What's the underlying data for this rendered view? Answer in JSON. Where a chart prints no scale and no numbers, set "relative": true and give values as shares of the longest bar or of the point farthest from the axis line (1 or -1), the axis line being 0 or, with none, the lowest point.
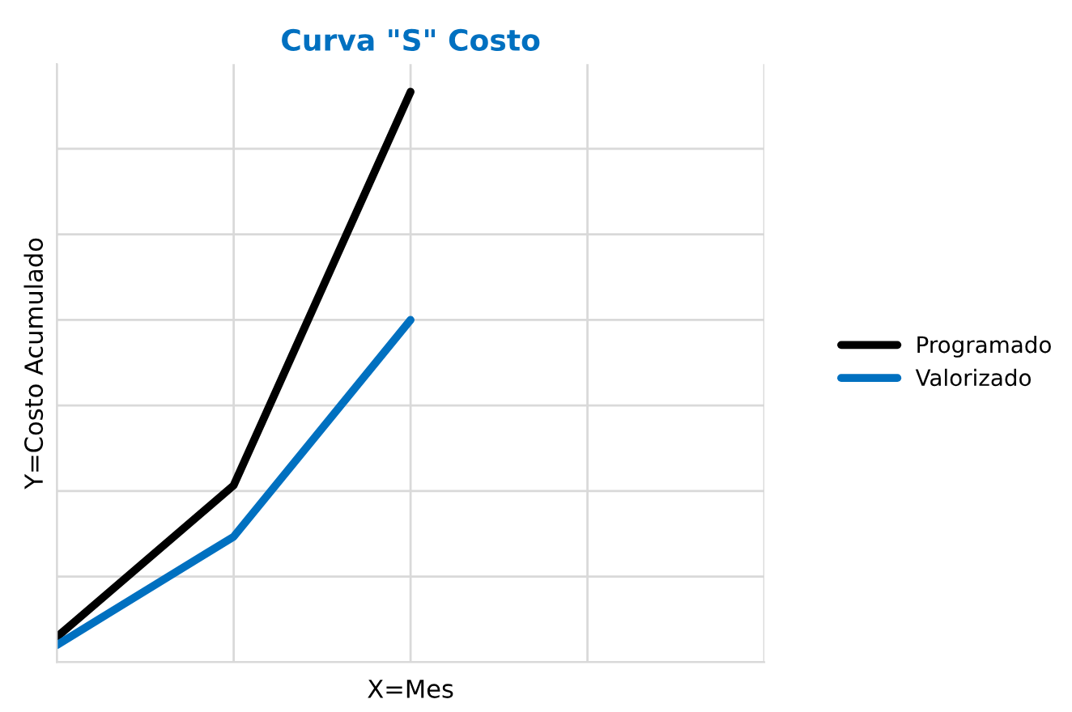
{
  "chart_data": {
    "type": "line",
    "title": "Curva \"S\" Costo",
    "xlabel": "X=Mes",
    "ylabel": "Y=Costo Acumulado",
    "relative": true,
    "categories": [
      null,
      null,
      null,
      null,
      null
    ],
    "series": [
      {
        "name": "Programado",
        "color": "#000000",
        "values": [
          0.044,
          0.31,
          1.0,
          null,
          null
        ]
      },
      {
        "name": "Valorizado",
        "color": "#0070c0",
        "values": [
          0.03,
          0.22,
          0.6,
          null,
          null
        ]
      }
    ],
    "grid": true,
    "legend": "right",
    "line_style": "solid",
    "marker": "none"
  }
}
